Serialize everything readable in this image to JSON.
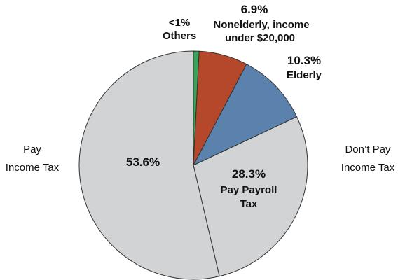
{
  "chart_data": {
    "type": "pie",
    "slices": [
      {
        "value_pct": 0.8,
        "value_label": "<1%",
        "label": [
          "Others"
        ],
        "color": "#3aa55a"
      },
      {
        "value_pct": 6.9,
        "value_label": "6.9%",
        "label": [
          "Nonelderly, income",
          "under $20,000"
        ],
        "color": "#b5472a"
      },
      {
        "value_pct": 10.3,
        "value_label": "10.3%",
        "label": [
          "Elderly"
        ],
        "color": "#5a82ad"
      },
      {
        "value_pct": 28.3,
        "value_label": "28.3%",
        "label": [
          "Pay Payroll",
          "Tax"
        ],
        "color": "#d1d3d5"
      },
      {
        "value_pct": 53.6,
        "value_label": "53.6%",
        "label": [],
        "color": "#d1d3d5"
      }
    ],
    "group_labels": [
      {
        "lines": [
          "Pay",
          "Income Tax"
        ],
        "side": "left"
      },
      {
        "lines": [
          "Don’t Pay",
          "Income Tax"
        ],
        "side": "right"
      }
    ],
    "stroke_color": "#333333"
  }
}
